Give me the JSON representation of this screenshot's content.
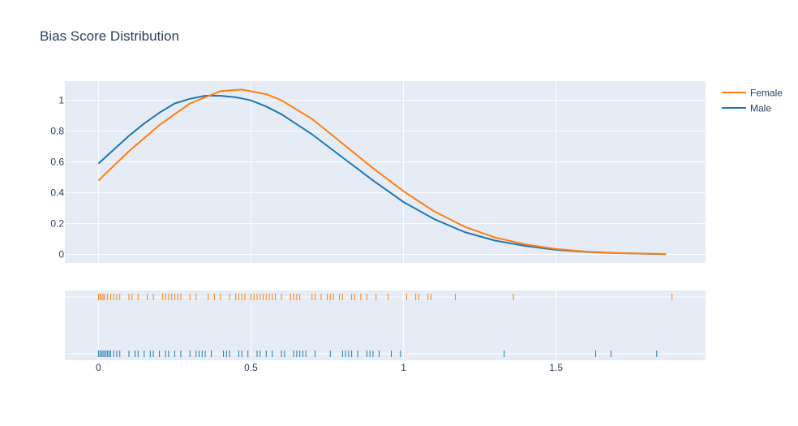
{
  "chart_data": {
    "type": "line",
    "title": "Bias Score Distribution",
    "xlabel": "",
    "ylabel": "",
    "xlim": [
      -0.11,
      1.99
    ],
    "ylim": [
      -0.055,
      1.125
    ],
    "x_ticks": [
      0,
      0.5,
      1,
      1.5
    ],
    "x_tick_labels": [
      "0",
      "0.5",
      "1",
      "1.5"
    ],
    "y_ticks": [
      0,
      0.2,
      0.4,
      0.6,
      0.8,
      1
    ],
    "y_tick_labels": [
      "0",
      "0.2",
      "0.4",
      "0.6",
      "0.8",
      "1"
    ],
    "grid": true,
    "legend_position": "top-right",
    "background": "#e5ecf6",
    "series": [
      {
        "name": "Female",
        "color": "#ff7f0e",
        "x": [
          0,
          0.1,
          0.2,
          0.3,
          0.4,
          0.47,
          0.55,
          0.6,
          0.7,
          0.8,
          0.9,
          1.0,
          1.1,
          1.2,
          1.3,
          1.4,
          1.5,
          1.6,
          1.7,
          1.86
        ],
        "y": [
          0.48,
          0.67,
          0.84,
          0.98,
          1.06,
          1.07,
          1.04,
          1.0,
          0.88,
          0.72,
          0.56,
          0.41,
          0.28,
          0.18,
          0.11,
          0.065,
          0.035,
          0.018,
          0.009,
          0.003
        ],
        "rug": [
          0,
          0.005,
          0.01,
          0.015,
          0.02,
          0.03,
          0.04,
          0.05,
          0.06,
          0.07,
          0.1,
          0.11,
          0.13,
          0.16,
          0.18,
          0.21,
          0.22,
          0.23,
          0.24,
          0.25,
          0.26,
          0.27,
          0.3,
          0.32,
          0.36,
          0.38,
          0.4,
          0.43,
          0.45,
          0.46,
          0.47,
          0.48,
          0.5,
          0.51,
          0.52,
          0.53,
          0.54,
          0.55,
          0.56,
          0.57,
          0.58,
          0.6,
          0.63,
          0.64,
          0.65,
          0.66,
          0.7,
          0.71,
          0.73,
          0.75,
          0.76,
          0.77,
          0.79,
          0.8,
          0.83,
          0.84,
          0.86,
          0.88,
          0.91,
          0.95,
          1.01,
          1.04,
          1.05,
          1.08,
          1.09,
          1.17,
          1.36,
          1.88
        ]
      },
      {
        "name": "Male",
        "color": "#1f77b4",
        "x": [
          0,
          0.05,
          0.1,
          0.15,
          0.2,
          0.25,
          0.3,
          0.35,
          0.4,
          0.45,
          0.5,
          0.55,
          0.6,
          0.7,
          0.8,
          0.9,
          1.0,
          1.1,
          1.2,
          1.3,
          1.4,
          1.5,
          1.6,
          1.7,
          1.86
        ],
        "y": [
          0.59,
          0.68,
          0.77,
          0.85,
          0.92,
          0.98,
          1.01,
          1.03,
          1.03,
          1.02,
          1.0,
          0.96,
          0.91,
          0.78,
          0.63,
          0.48,
          0.34,
          0.23,
          0.145,
          0.09,
          0.055,
          0.03,
          0.016,
          0.008,
          0.002
        ],
        "rug": [
          0,
          0.005,
          0.01,
          0.015,
          0.02,
          0.025,
          0.03,
          0.035,
          0.04,
          0.05,
          0.06,
          0.07,
          0.1,
          0.12,
          0.13,
          0.15,
          0.17,
          0.18,
          0.2,
          0.22,
          0.23,
          0.25,
          0.27,
          0.3,
          0.32,
          0.33,
          0.34,
          0.35,
          0.37,
          0.41,
          0.42,
          0.43,
          0.46,
          0.47,
          0.49,
          0.52,
          0.53,
          0.55,
          0.57,
          0.6,
          0.61,
          0.64,
          0.65,
          0.66,
          0.67,
          0.68,
          0.71,
          0.76,
          0.8,
          0.81,
          0.82,
          0.83,
          0.85,
          0.88,
          0.89,
          0.9,
          0.92,
          0.96,
          0.99,
          1.33,
          1.63,
          1.68,
          1.83
        ]
      }
    ]
  }
}
